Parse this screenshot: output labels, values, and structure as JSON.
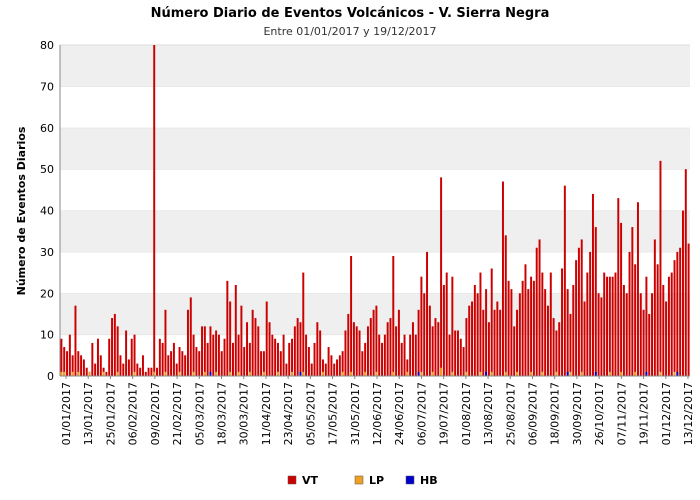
{
  "chart_data": {
    "type": "bar",
    "title": "Número Diario de Eventos Volcánicos -  V. Sierra Negra",
    "subtitle": "Entre 01/01/2017 y 19/12/2017",
    "ylabel": "Número de Eventos Diarios",
    "xlabel": "",
    "ylim": [
      0,
      80
    ],
    "y_ticks": [
      0,
      10,
      20,
      30,
      40,
      50,
      60,
      70,
      80
    ],
    "grid": "horizontal bands",
    "legend_position": "bottom",
    "x_start": "01/01/2017",
    "x_end": "19/12/2017",
    "x_tick_labels": [
      "01/01/2017",
      "13/01/2017",
      "25/01/2017",
      "06/02/2017",
      "09/02/2017",
      "21/02/2017",
      "05/03/2017",
      "18/03/2017",
      "30/03/2017",
      "11/04/2017",
      "23/04/2017",
      "05/05/2017",
      "17/05/2017",
      "31/05/2017",
      "12/06/2017",
      "24/06/2017",
      "06/07/2017",
      "19/07/2017",
      "01/08/2017",
      "13/08/2017",
      "25/08/2017",
      "06/09/2017",
      "18/09/2017",
      "30/09/2017",
      "26/10/2017",
      "07/11/2017",
      "19/11/2017",
      "01/12/2017",
      "13/12/2017"
    ],
    "series": [
      {
        "name": "VT",
        "color": "#cc0000",
        "values": [
          9,
          7,
          6,
          10,
          5,
          17,
          6,
          5,
          4,
          2,
          1,
          8,
          3,
          9,
          5,
          2,
          1,
          9,
          14,
          15,
          12,
          5,
          3,
          11,
          4,
          9,
          10,
          3,
          2,
          5,
          1,
          2,
          2,
          80,
          2,
          9,
          8,
          16,
          5,
          6,
          8,
          3,
          7,
          6,
          5,
          16,
          19,
          10,
          7,
          6,
          12,
          12,
          8,
          12,
          10,
          11,
          10,
          6,
          9,
          23,
          18,
          8,
          22,
          10,
          17,
          7,
          13,
          8,
          16,
          14,
          12,
          6,
          6,
          18,
          13,
          10,
          9,
          8,
          6,
          10,
          3,
          8,
          9,
          12,
          14,
          13,
          25,
          10,
          7,
          3,
          8,
          13,
          11,
          4,
          3,
          7,
          5,
          3,
          4,
          5,
          6,
          11,
          15,
          29,
          13,
          12,
          11,
          6,
          8,
          12,
          14,
          16,
          17,
          10,
          8,
          10,
          13,
          14,
          29,
          12,
          16,
          8,
          10,
          4,
          10,
          13,
          10,
          16,
          24,
          20,
          30,
          17,
          12,
          14,
          13,
          48,
          22,
          25,
          10,
          24,
          11,
          11,
          9,
          7,
          14,
          17,
          18,
          22,
          20,
          25,
          16,
          21,
          13,
          26,
          16,
          18,
          16,
          47,
          34,
          23,
          21,
          12,
          16,
          20,
          23,
          27,
          21,
          24,
          23,
          31,
          33,
          25,
          21,
          17,
          25,
          14,
          11,
          13,
          26,
          46,
          21,
          15,
          22,
          28,
          31,
          33,
          18,
          25,
          30,
          44,
          36,
          20,
          19,
          25,
          24,
          24,
          24,
          25,
          43,
          37,
          22,
          20,
          30,
          36,
          27,
          42,
          20,
          16,
          24,
          15,
          20,
          33,
          27,
          52,
          22,
          18,
          24,
          25,
          28,
          30,
          31,
          40,
          50,
          32
        ]
      },
      {
        "name": "LP",
        "color": "#f0a020",
        "values": [
          1,
          1,
          0,
          0,
          1,
          0,
          1,
          0,
          0,
          0,
          1,
          0,
          0,
          0,
          0,
          1,
          0,
          0,
          0,
          0,
          1,
          0,
          0,
          0,
          0,
          0,
          1,
          0,
          0,
          0,
          0,
          0,
          0,
          1,
          0,
          0,
          0,
          1,
          0,
          0,
          0,
          0,
          1,
          0,
          0,
          0,
          0,
          1,
          0,
          0,
          0,
          1,
          0,
          0,
          0,
          1,
          0,
          0,
          0,
          0,
          1,
          0,
          0,
          1,
          0,
          0,
          0,
          1,
          0,
          0,
          0,
          0,
          1,
          0,
          0,
          0,
          0,
          1,
          0,
          0,
          0,
          0,
          1,
          0,
          0,
          0,
          1,
          0,
          0,
          0,
          0,
          0,
          0,
          1,
          0,
          0,
          0,
          0,
          0,
          0,
          1,
          0,
          0,
          1,
          0,
          0,
          0,
          0,
          1,
          0,
          0,
          0,
          1,
          0,
          0,
          0,
          0,
          0,
          1,
          0,
          0,
          0,
          0,
          1,
          0,
          0,
          0,
          0,
          1,
          0,
          0,
          0,
          1,
          0,
          0,
          2,
          0,
          0,
          0,
          1,
          0,
          0,
          0,
          0,
          1,
          0,
          0,
          0,
          0,
          1,
          0,
          0,
          0,
          1,
          0,
          0,
          0,
          0,
          1,
          0,
          0,
          0,
          1,
          0,
          0,
          0,
          0,
          1,
          0,
          0,
          0,
          1,
          0,
          0,
          0,
          0,
          1,
          0,
          0,
          0,
          0,
          1,
          0,
          0,
          0,
          1,
          0,
          0,
          0,
          0,
          1,
          0,
          0,
          0,
          0,
          1,
          0,
          0,
          0,
          1,
          0,
          0,
          0,
          0,
          1,
          0,
          0,
          0,
          1,
          0,
          0,
          0,
          0,
          1,
          0,
          0,
          0,
          0,
          1,
          0,
          0
        ]
      },
      {
        "name": "HB",
        "color": "#0000cc",
        "values": [
          0,
          0,
          0,
          0,
          0,
          0,
          0,
          0,
          0,
          0,
          0,
          0,
          0,
          0,
          0,
          0,
          0,
          0,
          0,
          0,
          0,
          0,
          0,
          0,
          0,
          0,
          0,
          0,
          0,
          0,
          0,
          0,
          0,
          0,
          0,
          0,
          0,
          0,
          0,
          0,
          0,
          0,
          0,
          0,
          0,
          0,
          0,
          0,
          0,
          0,
          0,
          0,
          0,
          1,
          0,
          0,
          0,
          0,
          0,
          0,
          0,
          0,
          0,
          0,
          0,
          0,
          0,
          0,
          0,
          0,
          0,
          0,
          0,
          0,
          0,
          0,
          0,
          0,
          0,
          0,
          0,
          0,
          0,
          0,
          0,
          1,
          0,
          0,
          0,
          0,
          0,
          0,
          0,
          0,
          0,
          0,
          0,
          0,
          0,
          0,
          0,
          0,
          0,
          0,
          0,
          0,
          0,
          0,
          0,
          0,
          0,
          0,
          0,
          0,
          0,
          0,
          0,
          0,
          0,
          0,
          0,
          0,
          0,
          0,
          0,
          0,
          0,
          1,
          0,
          0,
          0,
          0,
          0,
          0,
          0,
          0,
          0,
          0,
          0,
          0,
          0,
          0,
          0,
          0,
          0,
          0,
          0,
          0,
          0,
          0,
          0,
          1,
          0,
          0,
          0,
          0,
          0,
          0,
          0,
          0,
          0,
          0,
          0,
          0,
          0,
          0,
          0,
          0,
          0,
          0,
          0,
          0,
          0,
          0,
          0,
          0,
          0,
          0,
          0,
          0,
          1,
          0,
          0,
          0,
          0,
          0,
          0,
          0,
          0,
          0,
          1,
          0,
          0,
          0,
          0,
          0,
          0,
          0,
          0,
          0,
          0,
          0,
          0,
          0,
          0,
          0,
          0,
          0,
          1,
          0,
          0,
          0,
          0,
          0,
          0,
          0,
          0,
          0,
          0,
          1,
          0,
          0,
          0,
          0,
          0,
          0
        ]
      }
    ]
  }
}
